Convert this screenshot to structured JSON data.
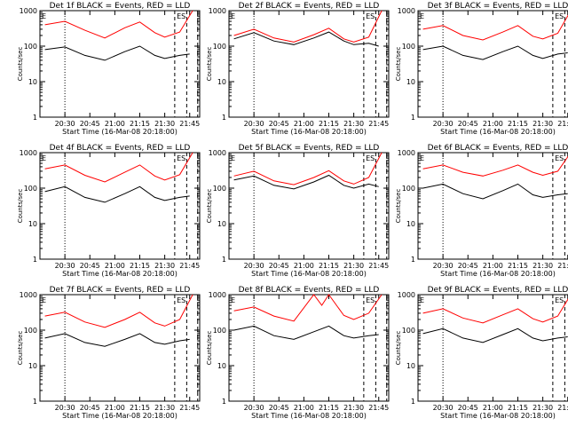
{
  "chart_data": {
    "type": "line",
    "y_scale": "log",
    "ylim": [
      1,
      1000
    ],
    "y_ticks": [
      1,
      10,
      100,
      1000
    ],
    "y_tick_labels": [
      "1",
      "10",
      "100",
      "1000"
    ],
    "x_tick_labels": [
      "20:30",
      "20:45",
      "21:00",
      "21:15",
      "21:30",
      "21:45"
    ],
    "xlabel": "Start Time (16-Mar-08 20:18:00)",
    "ylabel": "Counts/sec",
    "series_colors": {
      "events": "#000000",
      "lld": "#ff0000"
    },
    "panel_tags": [
      "E",
      "ES"
    ],
    "panels": [
      {
        "title": "Det 1f BLACK = Events, RED = LLD",
        "events": [
          [
            20.3,
            80
          ],
          [
            20.5,
            95
          ],
          [
            20.7,
            55
          ],
          [
            20.9,
            40
          ],
          [
            21.1,
            70
          ],
          [
            21.25,
            100
          ],
          [
            21.4,
            55
          ],
          [
            21.5,
            45
          ],
          [
            21.65,
            55
          ],
          [
            21.75,
            60
          ]
        ],
        "lld": [
          [
            20.3,
            400
          ],
          [
            20.5,
            500
          ],
          [
            20.7,
            280
          ],
          [
            20.9,
            170
          ],
          [
            21.1,
            330
          ],
          [
            21.25,
            480
          ],
          [
            21.4,
            240
          ],
          [
            21.5,
            180
          ],
          [
            21.65,
            250
          ],
          [
            21.78,
            1000
          ]
        ]
      },
      {
        "title": "Det 2f BLACK = Events, RED = LLD",
        "events": [
          [
            20.3,
            160
          ],
          [
            20.5,
            240
          ],
          [
            20.7,
            140
          ],
          [
            20.9,
            110
          ],
          [
            21.1,
            170
          ],
          [
            21.25,
            250
          ],
          [
            21.4,
            140
          ],
          [
            21.5,
            110
          ],
          [
            21.65,
            120
          ],
          [
            21.75,
            100
          ]
        ],
        "lld": [
          [
            20.3,
            200
          ],
          [
            20.5,
            300
          ],
          [
            20.7,
            170
          ],
          [
            20.9,
            130
          ],
          [
            21.1,
            210
          ],
          [
            21.25,
            320
          ],
          [
            21.4,
            160
          ],
          [
            21.5,
            130
          ],
          [
            21.65,
            180
          ],
          [
            21.78,
            1000
          ]
        ]
      },
      {
        "title": "Det 3f BLACK = Events, RED = LLD",
        "events": [
          [
            20.3,
            80
          ],
          [
            20.5,
            100
          ],
          [
            20.7,
            55
          ],
          [
            20.9,
            42
          ],
          [
            21.1,
            70
          ],
          [
            21.25,
            100
          ],
          [
            21.4,
            55
          ],
          [
            21.5,
            45
          ],
          [
            21.65,
            60
          ],
          [
            21.75,
            65
          ]
        ],
        "lld": [
          [
            20.3,
            300
          ],
          [
            20.5,
            380
          ],
          [
            20.7,
            200
          ],
          [
            20.9,
            150
          ],
          [
            21.1,
            250
          ],
          [
            21.25,
            380
          ],
          [
            21.4,
            190
          ],
          [
            21.5,
            160
          ],
          [
            21.65,
            230
          ],
          [
            21.78,
            1000
          ]
        ]
      },
      {
        "title": "Det 4f BLACK = Events, RED = LLD",
        "events": [
          [
            20.3,
            80
          ],
          [
            20.5,
            110
          ],
          [
            20.7,
            55
          ],
          [
            20.9,
            40
          ],
          [
            21.1,
            70
          ],
          [
            21.25,
            110
          ],
          [
            21.4,
            55
          ],
          [
            21.5,
            45
          ],
          [
            21.65,
            55
          ],
          [
            21.75,
            60
          ]
        ],
        "lld": [
          [
            20.3,
            350
          ],
          [
            20.5,
            450
          ],
          [
            20.7,
            230
          ],
          [
            20.9,
            150
          ],
          [
            21.1,
            280
          ],
          [
            21.25,
            450
          ],
          [
            21.4,
            220
          ],
          [
            21.5,
            170
          ],
          [
            21.65,
            240
          ],
          [
            21.78,
            1000
          ]
        ]
      },
      {
        "title": "Det 5f BLACK = Events, RED = LLD",
        "events": [
          [
            20.3,
            170
          ],
          [
            20.5,
            220
          ],
          [
            20.7,
            120
          ],
          [
            20.9,
            95
          ],
          [
            21.1,
            150
          ],
          [
            21.25,
            230
          ],
          [
            21.4,
            120
          ],
          [
            21.5,
            100
          ],
          [
            21.65,
            130
          ],
          [
            21.75,
            110
          ]
        ],
        "lld": [
          [
            20.3,
            220
          ],
          [
            20.5,
            300
          ],
          [
            20.7,
            160
          ],
          [
            20.9,
            125
          ],
          [
            21.1,
            200
          ],
          [
            21.25,
            310
          ],
          [
            21.4,
            160
          ],
          [
            21.5,
            130
          ],
          [
            21.65,
            200
          ],
          [
            21.78,
            1000
          ]
        ]
      },
      {
        "title": "Det 6f BLACK = Events, RED = LLD",
        "events": [
          [
            20.3,
            100
          ],
          [
            20.5,
            130
          ],
          [
            20.7,
            70
          ],
          [
            20.9,
            50
          ],
          [
            21.1,
            85
          ],
          [
            21.25,
            130
          ],
          [
            21.4,
            65
          ],
          [
            21.5,
            55
          ],
          [
            21.65,
            65
          ],
          [
            21.75,
            70
          ]
        ],
        "lld": [
          [
            20.3,
            350
          ],
          [
            20.5,
            450
          ],
          [
            20.7,
            280
          ],
          [
            20.9,
            220
          ],
          [
            21.1,
            320
          ],
          [
            21.25,
            450
          ],
          [
            21.4,
            280
          ],
          [
            21.5,
            230
          ],
          [
            21.65,
            300
          ],
          [
            21.78,
            1000
          ]
        ]
      },
      {
        "title": "Det 7f BLACK = Events, RED = LLD",
        "events": [
          [
            20.3,
            60
          ],
          [
            20.5,
            80
          ],
          [
            20.7,
            45
          ],
          [
            20.9,
            35
          ],
          [
            21.1,
            55
          ],
          [
            21.25,
            80
          ],
          [
            21.4,
            45
          ],
          [
            21.5,
            40
          ],
          [
            21.65,
            50
          ],
          [
            21.75,
            55
          ]
        ],
        "lld": [
          [
            20.3,
            250
          ],
          [
            20.5,
            320
          ],
          [
            20.7,
            170
          ],
          [
            20.9,
            120
          ],
          [
            21.1,
            200
          ],
          [
            21.25,
            320
          ],
          [
            21.4,
            160
          ],
          [
            21.5,
            130
          ],
          [
            21.65,
            200
          ],
          [
            21.78,
            1000
          ]
        ]
      },
      {
        "title": "Det 8f BLACK = Events, RED = LLD",
        "events": [
          [
            20.3,
            100
          ],
          [
            20.5,
            130
          ],
          [
            20.7,
            70
          ],
          [
            20.9,
            55
          ],
          [
            21.1,
            90
          ],
          [
            21.25,
            130
          ],
          [
            21.4,
            70
          ],
          [
            21.5,
            60
          ],
          [
            21.65,
            70
          ],
          [
            21.75,
            75
          ]
        ],
        "lld": [
          [
            20.3,
            350
          ],
          [
            20.5,
            450
          ],
          [
            20.7,
            250
          ],
          [
            20.9,
            180
          ],
          [
            21.1,
            1000
          ],
          [
            21.18,
            500
          ],
          [
            21.25,
            1000
          ],
          [
            21.4,
            260
          ],
          [
            21.5,
            200
          ],
          [
            21.65,
            300
          ],
          [
            21.78,
            1000
          ]
        ]
      },
      {
        "title": "Det 9f BLACK = Events, RED = LLD",
        "events": [
          [
            20.3,
            80
          ],
          [
            20.5,
            110
          ],
          [
            20.7,
            60
          ],
          [
            20.9,
            45
          ],
          [
            21.1,
            75
          ],
          [
            21.25,
            110
          ],
          [
            21.4,
            60
          ],
          [
            21.5,
            50
          ],
          [
            21.65,
            60
          ],
          [
            21.75,
            65
          ]
        ],
        "lld": [
          [
            20.3,
            300
          ],
          [
            20.5,
            400
          ],
          [
            20.7,
            220
          ],
          [
            20.9,
            160
          ],
          [
            21.1,
            270
          ],
          [
            21.25,
            400
          ],
          [
            21.4,
            210
          ],
          [
            21.5,
            170
          ],
          [
            21.65,
            250
          ],
          [
            21.78,
            1000
          ]
        ]
      }
    ]
  }
}
